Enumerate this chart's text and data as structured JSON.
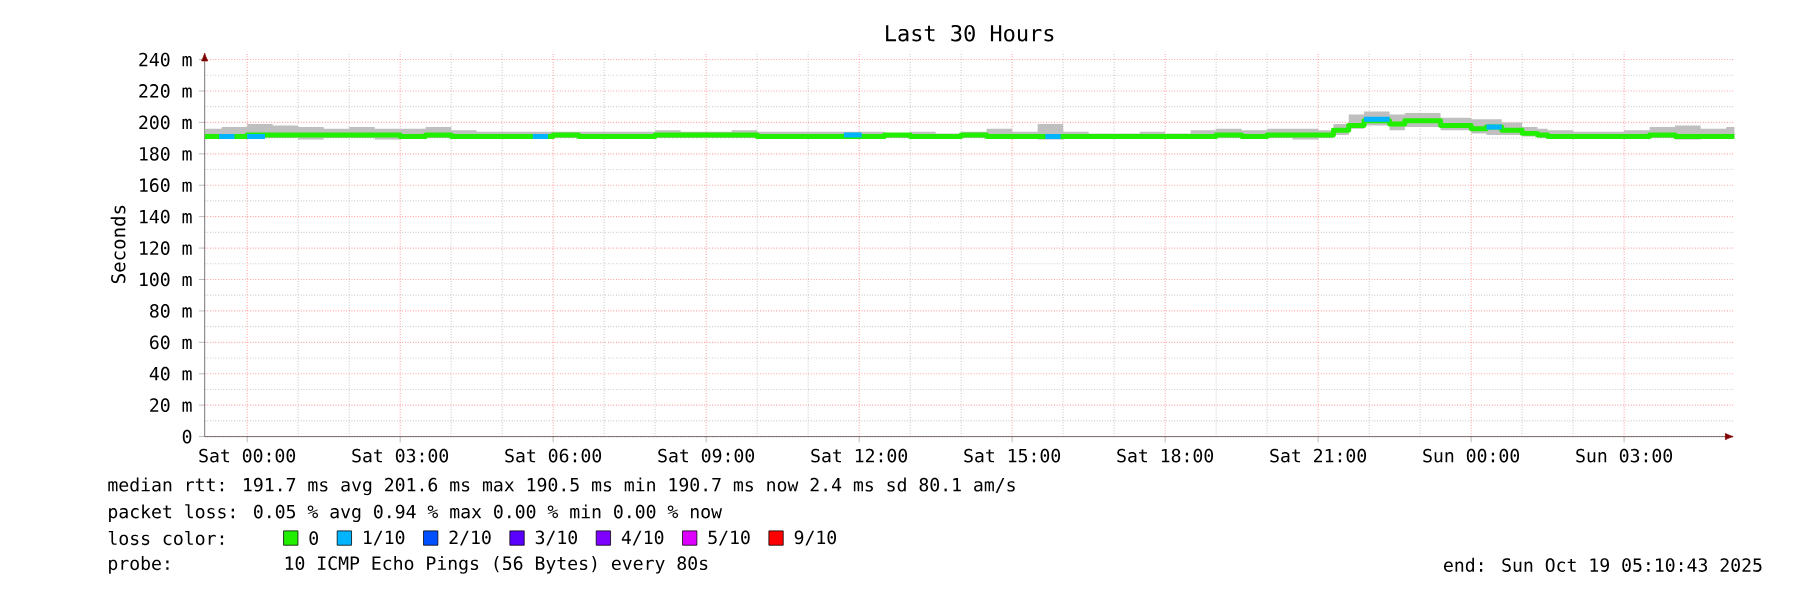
{
  "chart_data": {
    "type": "step",
    "title": "Last 30 Hours",
    "ylabel": "Seconds",
    "xlim": [
      "2025-10-17T23:10",
      "2025-10-19T05:10"
    ],
    "ylim": [
      0,
      245
    ],
    "xticks": [
      {
        "value": "2025-10-18T00:00",
        "label": "Sat 00:00"
      },
      {
        "value": "2025-10-18T03:00",
        "label": "Sat 03:00"
      },
      {
        "value": "2025-10-18T06:00",
        "label": "Sat 06:00"
      },
      {
        "value": "2025-10-18T09:00",
        "label": "Sat 09:00"
      },
      {
        "value": "2025-10-18T12:00",
        "label": "Sat 12:00"
      },
      {
        "value": "2025-10-18T15:00",
        "label": "Sat 15:00"
      },
      {
        "value": "2025-10-18T18:00",
        "label": "Sat 18:00"
      },
      {
        "value": "2025-10-18T21:00",
        "label": "Sat 21:00"
      },
      {
        "value": "2025-10-19T00:00",
        "label": "Sun 00:00"
      },
      {
        "value": "2025-10-19T03:00",
        "label": "Sun 03:00"
      }
    ],
    "yticks": [
      0,
      {
        "value": 20,
        "label": "20 m"
      },
      {
        "value": 40,
        "label": "40 m"
      },
      {
        "value": 60,
        "label": "60 m"
      },
      {
        "value": 80,
        "label": "80 m"
      },
      {
        "value": 100,
        "label": "100 m"
      },
      {
        "value": 120,
        "label": "120 m"
      },
      {
        "value": 140,
        "label": "140 m"
      },
      {
        "value": 160,
        "label": "160 m"
      },
      {
        "value": 180,
        "label": "180 m"
      },
      {
        "value": 200,
        "label": "200 m"
      },
      {
        "value": 220,
        "label": "220 m"
      },
      {
        "value": 240,
        "label": "240 m"
      }
    ],
    "grid": true,
    "legend": "bottom",
    "legend_title": "loss color:",
    "series": [
      {
        "name": "0",
        "color": "#22ee00",
        "x": [
          "2025-10-17T23:10",
          "2025-10-17T23:30",
          "2025-10-18T00:00",
          "2025-10-18T00:30",
          "2025-10-18T01:00",
          "2025-10-18T01:30",
          "2025-10-18T02:00",
          "2025-10-18T02:30",
          "2025-10-18T03:00",
          "2025-10-18T03:30",
          "2025-10-18T04:00",
          "2025-10-18T04:30",
          "2025-10-18T05:00",
          "2025-10-18T05:30",
          "2025-10-18T06:00",
          "2025-10-18T06:30",
          "2025-10-18T07:00",
          "2025-10-18T07:30",
          "2025-10-18T08:00",
          "2025-10-18T08:30",
          "2025-10-18T09:00",
          "2025-10-18T09:30",
          "2025-10-18T10:00",
          "2025-10-18T10:30",
          "2025-10-18T11:00",
          "2025-10-18T11:30",
          "2025-10-18T12:00",
          "2025-10-18T12:30",
          "2025-10-18T13:00",
          "2025-10-18T13:30",
          "2025-10-18T14:00",
          "2025-10-18T14:30",
          "2025-10-18T15:00",
          "2025-10-18T15:30",
          "2025-10-18T16:00",
          "2025-10-18T16:30",
          "2025-10-18T17:00",
          "2025-10-18T17:30",
          "2025-10-18T18:00",
          "2025-10-18T18:30",
          "2025-10-18T19:00",
          "2025-10-18T19:30",
          "2025-10-18T20:00",
          "2025-10-18T20:30",
          "2025-10-18T21:00",
          "2025-10-18T21:18",
          "2025-10-18T21:36",
          "2025-10-18T21:54",
          "2025-10-18T22:24",
          "2025-10-18T22:42",
          "2025-10-18T23:06",
          "2025-10-18T23:24",
          "2025-10-19T00:00",
          "2025-10-19T00:18",
          "2025-10-19T00:36",
          "2025-10-19T01:00",
          "2025-10-19T01:18",
          "2025-10-19T01:30",
          "2025-10-19T02:00",
          "2025-10-19T02:30",
          "2025-10-19T03:00",
          "2025-10-19T03:30",
          "2025-10-19T04:00",
          "2025-10-19T04:30",
          "2025-10-19T05:00",
          "2025-10-19T05:10"
        ],
        "values": [
          191,
          191,
          192,
          192,
          192,
          192,
          192,
          192,
          191,
          192,
          191,
          191,
          191,
          191,
          192,
          191,
          191,
          191,
          192,
          192,
          192,
          192,
          191,
          191,
          191,
          191,
          191,
          192,
          191,
          191,
          192,
          191,
          191,
          191,
          191,
          191,
          191,
          191,
          191,
          191,
          192,
          191,
          192,
          192,
          192,
          195,
          198,
          201,
          199,
          201,
          201,
          198,
          196,
          197,
          195,
          193,
          192,
          191,
          191,
          191,
          191,
          192,
          191,
          191,
          191,
          191
        ],
        "lower": [
          190,
          190,
          190,
          190,
          189,
          190,
          190,
          189,
          190,
          190,
          190,
          190,
          190,
          190,
          190,
          190,
          190,
          190,
          190,
          190,
          190,
          190,
          190,
          190,
          190,
          190,
          190,
          190,
          190,
          190,
          190,
          190,
          190,
          189,
          190,
          190,
          190,
          190,
          190,
          190,
          190,
          190,
          190,
          189,
          190,
          192,
          196,
          198,
          195,
          197,
          197,
          195,
          193,
          192,
          192,
          191,
          190,
          190,
          190,
          190,
          190,
          190,
          189,
          190,
          190,
          190
        ],
        "upper": [
          196,
          197,
          199,
          198,
          197,
          196,
          197,
          196,
          196,
          197,
          195,
          194,
          194,
          194,
          194,
          194,
          194,
          194,
          195,
          194,
          194,
          195,
          194,
          194,
          194,
          194,
          194,
          193,
          194,
          193,
          194,
          196,
          194,
          199,
          194,
          193,
          193,
          194,
          193,
          195,
          196,
          195,
          196,
          196,
          195,
          199,
          205,
          207,
          205,
          206,
          206,
          203,
          202,
          202,
          200,
          197,
          196,
          195,
          194,
          194,
          195,
          197,
          198,
          196,
          197,
          197
        ]
      },
      {
        "name": "1/10",
        "color": "#00b4ff",
        "x": [
          "2025-10-17T23:27",
          "2025-10-17T23:45",
          "2025-10-17T23:48",
          "2025-10-18T00:00",
          "2025-10-18T00:21",
          "2025-10-18T00:24",
          "2025-10-18T05:36",
          "2025-10-18T05:54",
          "2025-10-18T05:57",
          "2025-10-18T11:42",
          "2025-10-18T12:03",
          "2025-10-18T12:06",
          "2025-10-18T15:39",
          "2025-10-18T15:57",
          "2025-10-18T16:00",
          "2025-10-18T21:54",
          "2025-10-18T22:24",
          "2025-10-18T22:27",
          "2025-10-19T00:18",
          "2025-10-19T00:36"
        ],
        "values": [
          191,
          191,
          null,
          191,
          191,
          null,
          191,
          191,
          null,
          192,
          192,
          null,
          191,
          191,
          null,
          202,
          202,
          null,
          197,
          197
        ]
      },
      {
        "name": "2/10",
        "color": "#0050ff"
      },
      {
        "name": "3/10",
        "color": "#5a00ff"
      },
      {
        "name": "4/10",
        "color": "#7e00ff"
      },
      {
        "name": "5/10",
        "color": "#dd00ff"
      },
      {
        "name": "9/10",
        "color": "#ff0000"
      }
    ],
    "annotations": [
      "median rtt:  191.7 ms avg  201.6 ms max  190.5 ms min  190.7 ms now  2.4 ms sd  80.1   am/s",
      "packet loss: 0.05 % avg  0.94 % max  0.00 % min  0.00 % now",
      "probe:",
      "10 ICMP Echo Pings (56 Bytes) every 80s",
      "end: Sun Oct 19 05:10:43 2025"
    ]
  }
}
